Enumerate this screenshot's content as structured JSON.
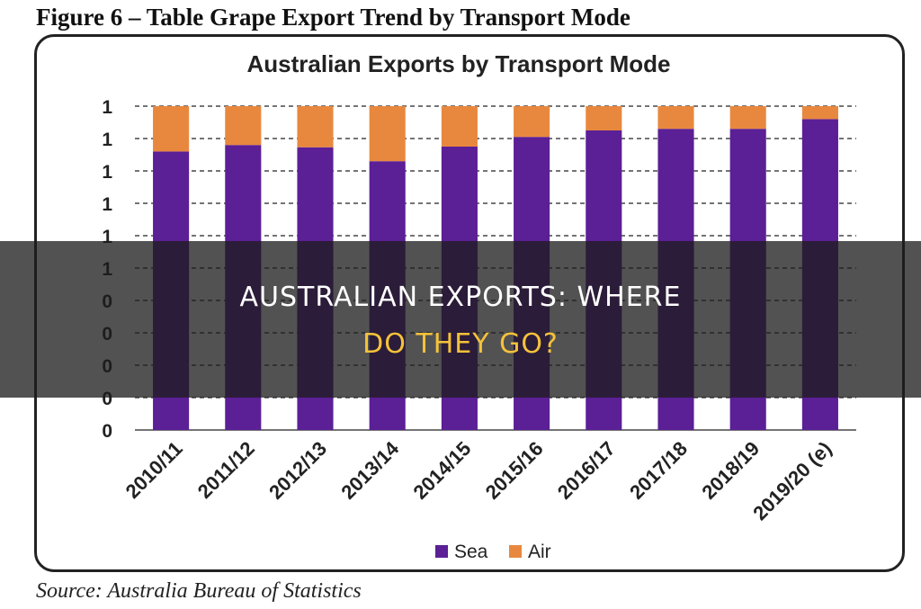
{
  "figure_caption": "Figure 6 – Table Grape Export Trend by Transport Mode",
  "source": "Source:  Australia Bureau of Statistics",
  "overlay": {
    "line1": "AUSTRALIAN EXPORTS: WHERE",
    "line2": "DO THEY GO?",
    "line1_color": "#ffffff",
    "line2_color": "#f5c23a"
  },
  "chart_data": {
    "type": "bar",
    "stacked": true,
    "title": "Australian Exports by Transport Mode",
    "categories": [
      "2010/11",
      "2011/12",
      "2012/13",
      "2013/14",
      "2014/15",
      "2015/16",
      "2016/17",
      "2017/18",
      "2018/19",
      "2019/20 (e)"
    ],
    "series": [
      {
        "name": "Sea",
        "color": "#5b1f96",
        "values": [
          0.86,
          0.88,
          0.873,
          0.83,
          0.875,
          0.905,
          0.925,
          0.93,
          0.93,
          0.96
        ]
      },
      {
        "name": "Air",
        "color": "#e8883f",
        "values": [
          0.14,
          0.12,
          0.127,
          0.17,
          0.125,
          0.095,
          0.075,
          0.07,
          0.07,
          0.04
        ]
      }
    ],
    "ylim": [
      0,
      1
    ],
    "y_ticks": [
      "0",
      "0",
      "0",
      "0",
      "0",
      "1",
      "1",
      "1",
      "1",
      "1",
      "1"
    ],
    "grid": true,
    "legend": "bottom"
  }
}
